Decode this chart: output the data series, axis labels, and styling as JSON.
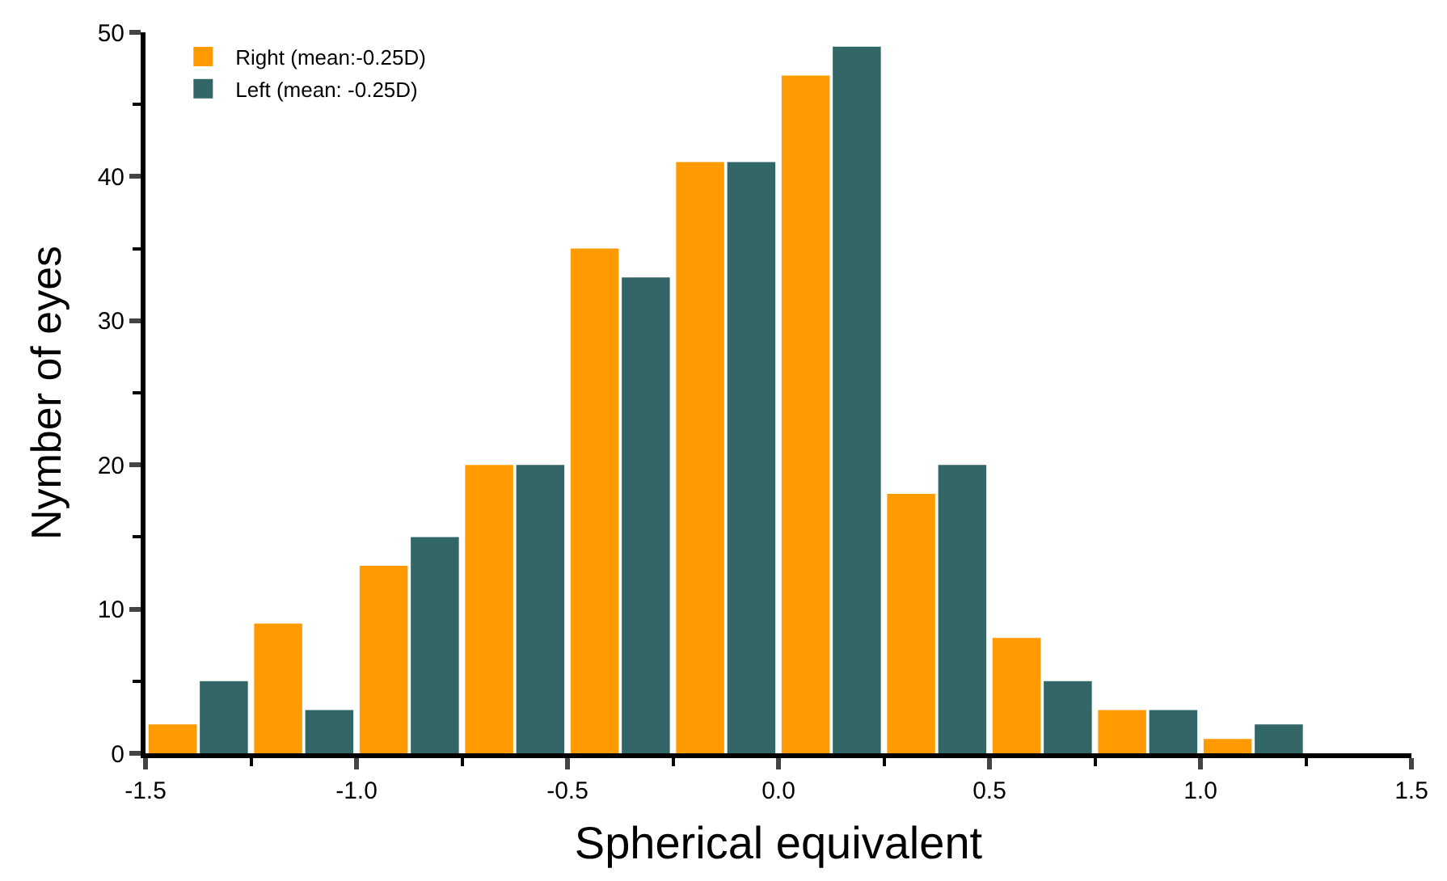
{
  "chart_data": {
    "type": "bar",
    "xlabel": "Spherical equivalent",
    "ylabel": "Nymber of eyes",
    "x": [
      -1.375,
      -1.125,
      -0.875,
      -0.625,
      -0.375,
      -0.125,
      0.125,
      0.375,
      0.625,
      0.875,
      1.125
    ],
    "series": [
      {
        "name": "Right (mean:-0.25D)",
        "color": "#ff9a00",
        "values": [
          2,
          9,
          13,
          20,
          35,
          41,
          47,
          18,
          8,
          3,
          1
        ]
      },
      {
        "name": "Left (mean: -0.25D)",
        "color": "#336666",
        "values": [
          5,
          3,
          15,
          20,
          33,
          41,
          49,
          20,
          5,
          3,
          2
        ]
      }
    ],
    "xlim": [
      -1.5,
      1.5
    ],
    "xticks": [
      -1.5,
      {
        "value": -1.0,
        "label": "-1.0"
      },
      -0.5,
      {
        "value": 0.0,
        "label": "0.0"
      },
      0.5,
      {
        "value": 1.0,
        "label": "1.0"
      },
      1.5
    ],
    "ylim": [
      0,
      50
    ],
    "yticks": [
      0,
      10,
      20,
      30,
      40,
      50
    ],
    "legend": "top left"
  }
}
